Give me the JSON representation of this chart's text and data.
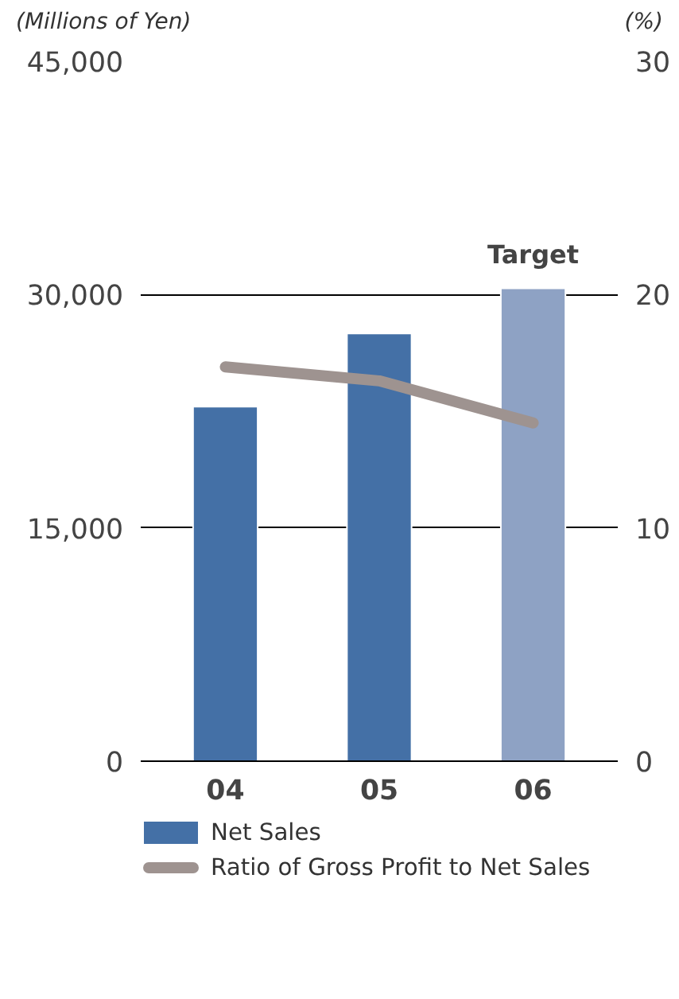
{
  "chart_data": {
    "type": "bar",
    "categories": [
      "04",
      "05",
      "06"
    ],
    "ylabel": "(Millions of Yen)",
    "y2label": "(%)",
    "series": [
      {
        "name": "Net Sales",
        "color": "#4470a6",
        "colors": [
          "#4470a6",
          "#4470a6",
          "#8ea2c4"
        ],
        "values": [
          22800,
          27500,
          30400
        ]
      },
      {
        "name": "Ratio of Gross Profit to Net Sales",
        "type": "line",
        "axis": "y2",
        "color": "#9e9390",
        "values": [
          16.9,
          16.3,
          14.5
        ]
      }
    ],
    "ylim": [
      0,
      45000
    ],
    "yticks": [
      {
        "value": 0,
        "label": "0"
      },
      {
        "value": 15000,
        "label": "15,000"
      },
      {
        "value": 30000,
        "label": "30,000"
      },
      {
        "value": 45000,
        "label": "45,000"
      }
    ],
    "y2lim": [
      0,
      30
    ],
    "y2ticks": [
      0,
      10,
      20,
      30
    ],
    "annotations": [
      {
        "text": "Target",
        "x": "06",
        "y": 30400
      }
    ],
    "grid": "y",
    "legend": "bottom"
  }
}
